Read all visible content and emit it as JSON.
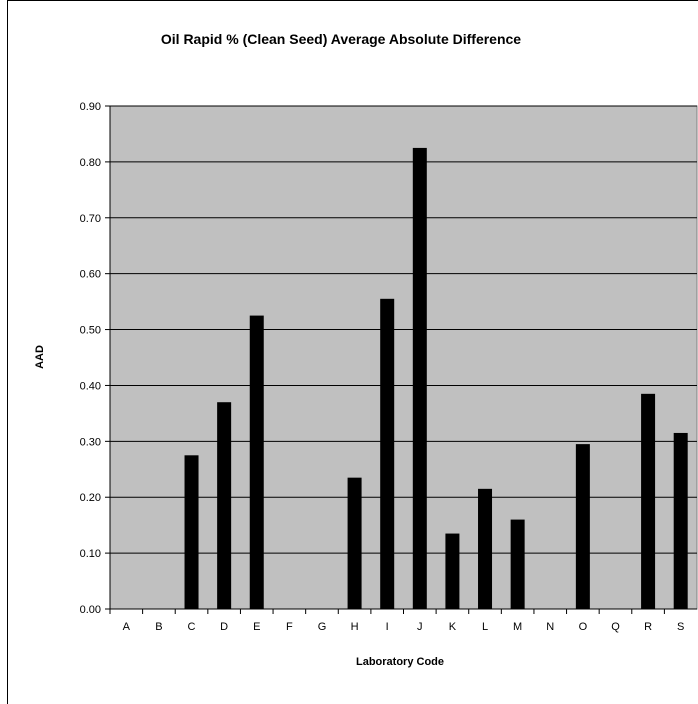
{
  "chart_data": {
    "type": "bar",
    "title": "Oil Rapid % (Clean Seed) Average Absolute Difference",
    "xlabel": "Laboratory Code",
    "ylabel": "AAD",
    "categories": [
      "A",
      "B",
      "C",
      "D",
      "E",
      "F",
      "G",
      "H",
      "I",
      "J",
      "K",
      "L",
      "M",
      "N",
      "O",
      "Q",
      "R",
      "S"
    ],
    "values": [
      0,
      0,
      0.275,
      0.37,
      0.525,
      0,
      0,
      0.235,
      0.555,
      0.825,
      0.135,
      0.215,
      0.16,
      0,
      0.295,
      0,
      0.385,
      0.315
    ],
    "ylim": [
      0,
      0.9
    ],
    "yticks": [
      "0.00",
      "0.10",
      "0.20",
      "0.30",
      "0.40",
      "0.50",
      "0.60",
      "0.70",
      "0.80",
      "0.90"
    ],
    "grid": true,
    "colors": {
      "plot_background": "#c0c0c0",
      "bar": "#000000",
      "gridline": "#000000"
    }
  }
}
